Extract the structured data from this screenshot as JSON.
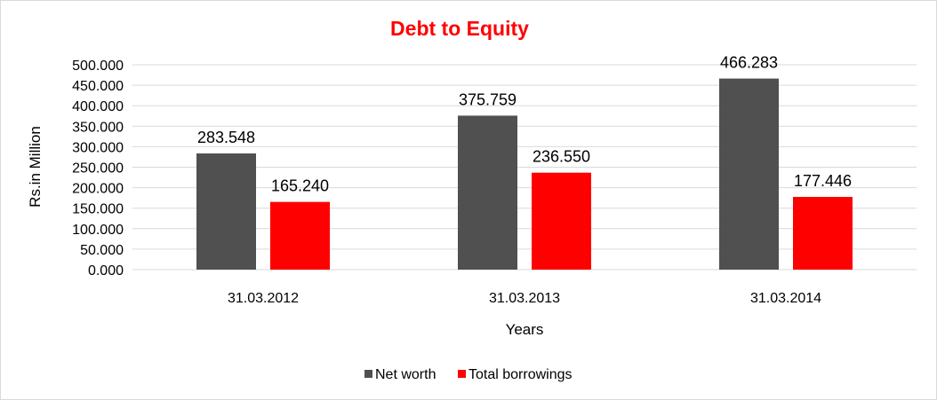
{
  "chart_data": {
    "type": "bar",
    "title": "Debt to Equity",
    "title_color": "#ff0000",
    "xlabel": "Years",
    "ylabel": "Rs.in Million",
    "categories": [
      "31.03.2012",
      "31.03.2013",
      "31.03.2014"
    ],
    "series": [
      {
        "name": "Net worth",
        "color": "#505050",
        "values": [
          283.548,
          375.759,
          466.283
        ],
        "labels": [
          "283.548",
          "375.759",
          "466.283"
        ]
      },
      {
        "name": "Total borrowings",
        "color": "#ff0000",
        "values": [
          165.24,
          236.55,
          177.446
        ],
        "labels": [
          "165.240",
          "236.550",
          "177.446"
        ]
      }
    ],
    "ylim": [
      0,
      500
    ],
    "yticks": [
      0,
      50,
      100,
      150,
      200,
      250,
      300,
      350,
      400,
      450,
      500
    ],
    "ytick_labels": [
      "0.000",
      "50.000",
      "100.000",
      "150.000",
      "200.000",
      "250.000",
      "300.000",
      "350.000",
      "400.000",
      "450.000",
      "500.000"
    ],
    "grid": true,
    "legend_position": "bottom"
  }
}
